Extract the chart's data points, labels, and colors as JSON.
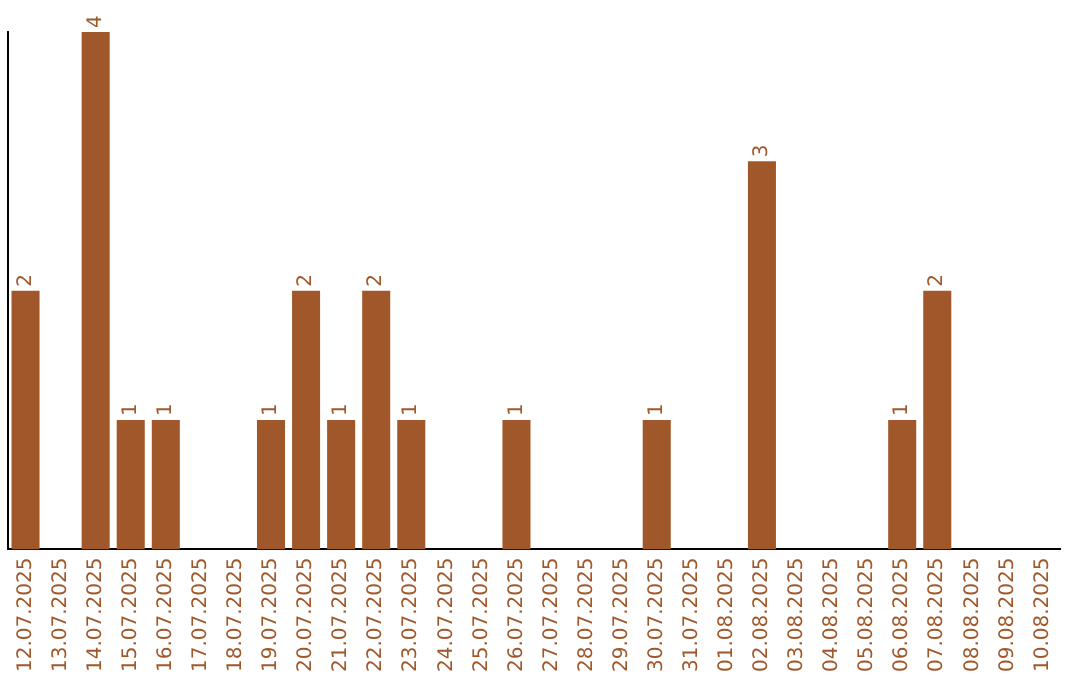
{
  "chart_data": {
    "type": "bar",
    "categories": [
      "12.07.2025",
      "13.07.2025",
      "14.07.2025",
      "15.07.2025",
      "16.07.2025",
      "17.07.2025",
      "18.07.2025",
      "19.07.2025",
      "20.07.2025",
      "21.07.2025",
      "22.07.2025",
      "23.07.2025",
      "24.07.2025",
      "25.07.2025",
      "26.07.2025",
      "27.07.2025",
      "28.07.2025",
      "29.07.2025",
      "30.07.2025",
      "31.07.2025",
      "01.08.2025",
      "02.08.2025",
      "03.08.2025",
      "04.08.2025",
      "05.08.2025",
      "06.08.2025",
      "07.08.2025",
      "08.08.2025",
      "09.08.2025",
      "10.08.2025"
    ],
    "values": [
      2,
      0,
      4,
      1,
      1,
      0,
      0,
      1,
      2,
      1,
      2,
      1,
      0,
      0,
      1,
      0,
      0,
      0,
      1,
      0,
      0,
      3,
      0,
      0,
      0,
      1,
      2,
      0,
      0,
      0
    ],
    "value_labels": [
      "2",
      null,
      "4",
      "1",
      "1",
      null,
      null,
      "1",
      "2",
      "1",
      "2",
      "1",
      null,
      null,
      "1",
      null,
      null,
      null,
      "1",
      null,
      null,
      "3",
      null,
      null,
      null,
      "1",
      "2",
      null,
      null,
      null
    ],
    "color": "#a0582a",
    "grid": false,
    "legend": false
  }
}
